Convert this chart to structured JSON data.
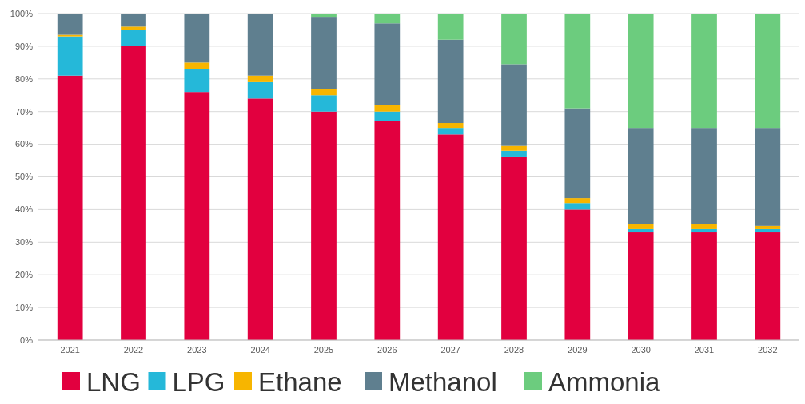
{
  "chart_data": {
    "type": "bar",
    "stacked": true,
    "categories": [
      "2021",
      "2022",
      "2023",
      "2024",
      "2025",
      "2026",
      "2027",
      "2028",
      "2029",
      "2030",
      "2031",
      "2032"
    ],
    "series": [
      {
        "name": "LNG",
        "color": "#e2003f",
        "values": [
          81,
          90,
          76,
          74,
          70,
          67,
          63,
          56,
          40,
          33,
          33,
          33
        ]
      },
      {
        "name": "LPG",
        "color": "#25b8d9",
        "values": [
          12,
          5,
          7,
          5,
          5,
          3,
          2,
          2,
          2,
          1,
          1,
          1
        ]
      },
      {
        "name": "Ethane",
        "color": "#f7b500",
        "values": [
          0.5,
          1,
          2,
          2,
          2,
          2,
          1.5,
          1.5,
          1.5,
          1.5,
          1.5,
          1
        ]
      },
      {
        "name": "Methanol",
        "color": "#5f7f8f",
        "values": [
          6.5,
          4,
          15,
          19,
          22,
          25,
          25.5,
          25,
          27.5,
          29.5,
          29.5,
          30
        ]
      },
      {
        "name": "Ammonia",
        "color": "#6ccc7e",
        "values": [
          0,
          0,
          0,
          0,
          1,
          3,
          8,
          15.5,
          29,
          35,
          35,
          35
        ]
      }
    ],
    "ylim": [
      0,
      100
    ],
    "yticks": [
      {
        "value": 0,
        "label": "0%"
      },
      {
        "value": 10,
        "label": "10%"
      },
      {
        "value": 20,
        "label": "20%"
      },
      {
        "value": 30,
        "label": "30%"
      },
      {
        "value": 40,
        "label": "40%"
      },
      {
        "value": 50,
        "label": "50%"
      },
      {
        "value": 60,
        "label": "60%"
      },
      {
        "value": 70,
        "label": "70%"
      },
      {
        "value": 80,
        "label": "80%"
      },
      {
        "value": 90,
        "label": "90%"
      },
      {
        "value": 100,
        "label": "100%"
      }
    ],
    "grid": "y",
    "legend": "bottom"
  }
}
